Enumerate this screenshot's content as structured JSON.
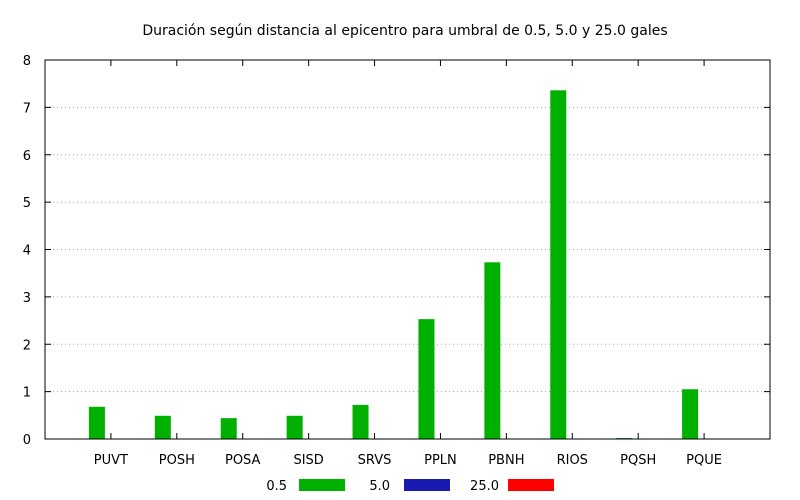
{
  "chart_data": {
    "type": "bar",
    "title": "Duración según distancia al epicentro para umbral de 0.5, 5.0 y 25.0 gales",
    "xlabel": "",
    "ylabel": "",
    "categories": [
      "PUVT",
      "POSH",
      "POSA",
      "SISD",
      "SRVS",
      "PPLN",
      "PBNH",
      "RIOS",
      "PQSH",
      "PQUE"
    ],
    "ylim": [
      0,
      8
    ],
    "yticks": [
      0,
      1,
      2,
      3,
      4,
      5,
      6,
      7,
      8
    ],
    "grid": true,
    "legend_position": "bottom",
    "series": [
      {
        "name": "0.5",
        "color": "#00b000",
        "values": [
          0.68,
          0.49,
          0.44,
          0.49,
          0.72,
          2.53,
          3.73,
          7.36,
          0.02,
          1.05
        ]
      },
      {
        "name": "5.0",
        "color": "#1a1ab0",
        "values": [
          0,
          0,
          0,
          0,
          0,
          0,
          0,
          0,
          0,
          0
        ]
      },
      {
        "name": "25.0",
        "color": "#ff0000",
        "values": [
          0,
          0,
          0,
          0,
          0,
          0,
          0,
          0,
          0,
          0
        ]
      }
    ]
  }
}
